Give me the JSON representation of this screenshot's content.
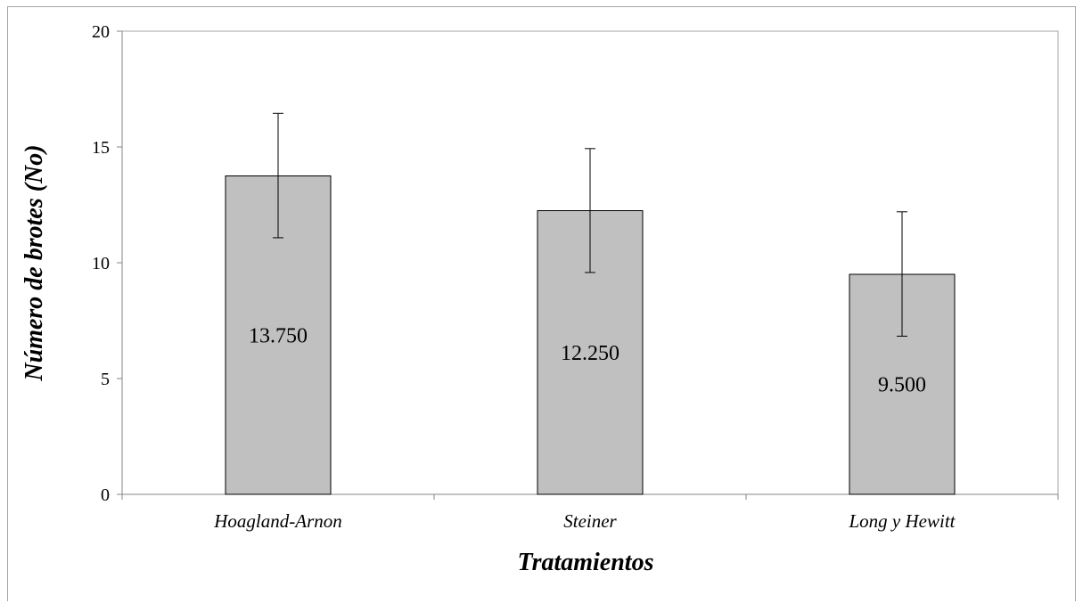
{
  "chart_data": {
    "type": "bar",
    "categories": [
      "Hoagland-Arnon",
      "Steiner",
      "Long y Hewitt"
    ],
    "values": [
      13.75,
      12.25,
      9.5
    ],
    "data_labels": [
      "13.750",
      "12.250",
      "9.500"
    ],
    "error_low": [
      11.08,
      9.58,
      6.83
    ],
    "error_high": [
      16.45,
      14.93,
      12.2
    ],
    "xlabel": "Tratamientos",
    "ylabel": "Número de brotes (No)",
    "ylim": [
      0,
      20
    ],
    "yticks": [
      0,
      5,
      10,
      15,
      20
    ],
    "ytick_labels": [
      "0",
      "5",
      "10",
      "15",
      "20"
    ],
    "grid": false,
    "bar_color": "#c0c0c0",
    "bar_edge_color": "#000000",
    "plot_border_color": "#a6a6a6"
  }
}
